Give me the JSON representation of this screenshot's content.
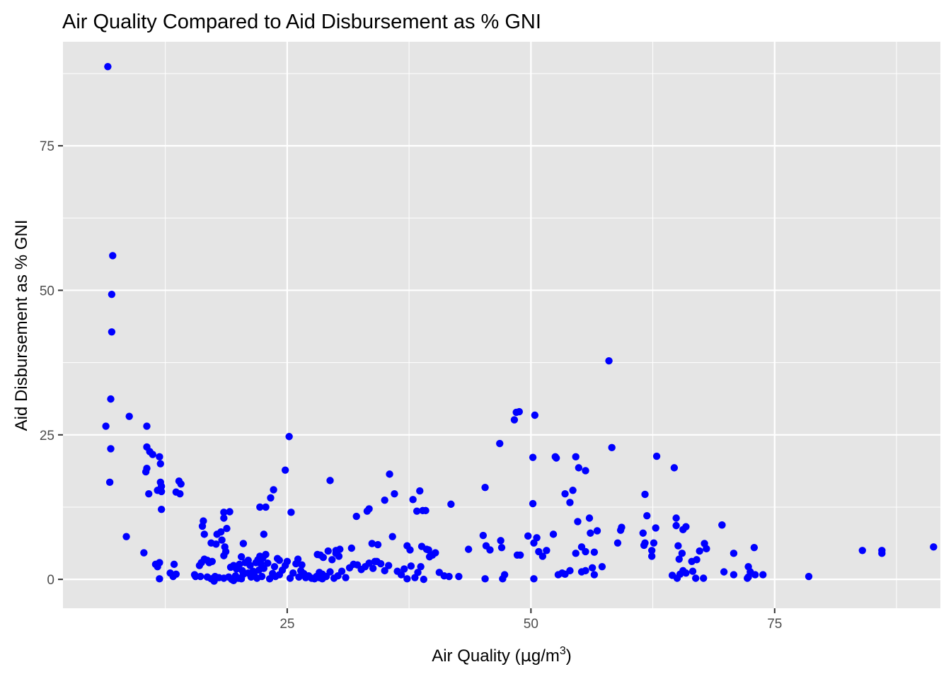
{
  "chart_data": {
    "type": "scatter",
    "title": "Air Quality Compared to Aid Disbursement as % GNI",
    "xlabel_main": "Air Quality (",
    "xlabel_unit_mu": "µ",
    "xlabel_unit_g": "g/m",
    "xlabel_unit_sup": "3",
    "xlabel_close": ")",
    "ylabel": "Aid Disbursement as % GNI",
    "xlim": [
      2,
      92
    ],
    "ylim": [
      -5,
      93
    ],
    "x_ticks": [
      25,
      50,
      75
    ],
    "y_ticks": [
      0,
      25,
      50,
      75
    ],
    "x_tick_labels": [
      "25",
      "50",
      "75"
    ],
    "y_tick_labels": [
      "0",
      "25",
      "50",
      "75"
    ],
    "x_minor": [
      12.5,
      37.5,
      62.5,
      87.5
    ],
    "y_minor": [
      12.5,
      37.5,
      62.5,
      87.5
    ],
    "grid": true,
    "colors": {
      "panel": "#e5e5e5",
      "grid": "#ffffff",
      "point": "#0000ff",
      "tick": "#333333"
    },
    "series": [
      {
        "points": [
          [
            6.6,
            88.7
          ],
          [
            7.1,
            56.0
          ],
          [
            7.0,
            49.3
          ],
          [
            7.0,
            42.8
          ],
          [
            6.9,
            31.2
          ],
          [
            6.4,
            26.5
          ],
          [
            6.9,
            22.6
          ],
          [
            6.8,
            16.8
          ],
          [
            8.8,
            28.2
          ],
          [
            8.5,
            7.4
          ],
          [
            10.6,
            26.5
          ],
          [
            10.6,
            22.9
          ],
          [
            10.9,
            22.1
          ],
          [
            11.2,
            21.6
          ],
          [
            11.9,
            21.2
          ],
          [
            12.0,
            20.0
          ],
          [
            10.6,
            19.2
          ],
          [
            10.5,
            18.6
          ],
          [
            12.0,
            16.8
          ],
          [
            12.1,
            16.1
          ],
          [
            11.7,
            15.4
          ],
          [
            12.1,
            15.2
          ],
          [
            10.8,
            14.8
          ],
          [
            12.1,
            12.1
          ],
          [
            10.3,
            4.6
          ],
          [
            11.5,
            2.6
          ],
          [
            11.7,
            2.2
          ],
          [
            11.9,
            2.9
          ],
          [
            11.9,
            0.1
          ],
          [
            13.0,
            1.1
          ],
          [
            13.3,
            0.5
          ],
          [
            13.4,
            2.6
          ],
          [
            13.6,
            0.9
          ],
          [
            13.9,
            17.0
          ],
          [
            14.1,
            16.5
          ],
          [
            14.0,
            14.8
          ],
          [
            13.6,
            15.1
          ],
          [
            15.5,
            0.8
          ],
          [
            15.6,
            0.5
          ],
          [
            16.1,
            0.5
          ],
          [
            16.8,
            0.4
          ],
          [
            17.2,
            0.1
          ],
          [
            17.5,
            -0.3
          ],
          [
            16.0,
            2.4
          ],
          [
            16.2,
            2.9
          ],
          [
            16.5,
            3.5
          ],
          [
            16.8,
            3.3
          ],
          [
            17.0,
            2.9
          ],
          [
            17.3,
            3.1
          ],
          [
            16.3,
            9.2
          ],
          [
            16.4,
            10.1
          ],
          [
            16.5,
            7.8
          ],
          [
            17.2,
            6.3
          ],
          [
            17.7,
            6.1
          ],
          [
            17.8,
            7.8
          ],
          [
            18.2,
            8.2
          ],
          [
            18.3,
            6.8
          ],
          [
            18.6,
            5.6
          ],
          [
            18.5,
            4.1
          ],
          [
            18.7,
            4.8
          ],
          [
            18.5,
            10.6
          ],
          [
            18.5,
            11.6
          ],
          [
            19.1,
            11.7
          ],
          [
            18.8,
            8.8
          ],
          [
            17.6,
            0.5
          ],
          [
            18.0,
            0.3
          ],
          [
            18.5,
            0.2
          ],
          [
            19.0,
            0.4
          ],
          [
            19.3,
            0.0
          ],
          [
            19.5,
            -0.2
          ],
          [
            19.7,
            0.6
          ],
          [
            20.0,
            0.2
          ],
          [
            20.3,
            0.1
          ],
          [
            20.5,
            0.9
          ],
          [
            19.2,
            2.1
          ],
          [
            19.5,
            2.4
          ],
          [
            19.8,
            1.8
          ],
          [
            20.1,
            2.6
          ],
          [
            20.4,
            1.5
          ],
          [
            20.7,
            2.9
          ],
          [
            21.0,
            3.3
          ],
          [
            21.2,
            2.4
          ],
          [
            21.5,
            1.4
          ],
          [
            21.8,
            2.9
          ],
          [
            20.3,
            3.9
          ],
          [
            20.5,
            6.2
          ],
          [
            21.0,
            1.1
          ],
          [
            21.3,
            0.4
          ],
          [
            21.6,
            0.8
          ],
          [
            21.9,
            0.2
          ],
          [
            22.1,
            1.6
          ],
          [
            22.3,
            2.7
          ],
          [
            22.5,
            3.7
          ],
          [
            22.8,
            4.3
          ],
          [
            22.0,
            3.4
          ],
          [
            22.2,
            4.0
          ],
          [
            22.4,
            0.5
          ],
          [
            22.6,
            1.9
          ],
          [
            23.0,
            2.8
          ],
          [
            23.2,
            0.1
          ],
          [
            23.5,
            1.0
          ],
          [
            23.7,
            2.2
          ],
          [
            24.0,
            3.6
          ],
          [
            24.2,
            3.3
          ],
          [
            22.2,
            12.5
          ],
          [
            22.8,
            12.5
          ],
          [
            22.6,
            7.8
          ],
          [
            23.3,
            14.1
          ],
          [
            23.6,
            15.5
          ],
          [
            24.8,
            18.9
          ],
          [
            25.2,
            24.7
          ],
          [
            25.4,
            11.6
          ],
          [
            23.8,
            0.5
          ],
          [
            24.2,
            0.8
          ],
          [
            24.5,
            1.6
          ],
          [
            24.8,
            2.4
          ],
          [
            25.0,
            3.1
          ],
          [
            25.3,
            0.2
          ],
          [
            25.6,
            1.1
          ],
          [
            25.9,
            2.7
          ],
          [
            26.2,
            0.4
          ],
          [
            26.4,
            1.5
          ],
          [
            26.1,
            3.5
          ],
          [
            26.5,
            2.5
          ],
          [
            26.7,
            1.0
          ],
          [
            26.9,
            0.3
          ],
          [
            27.2,
            0.6
          ],
          [
            27.5,
            0.2
          ],
          [
            27.8,
            0.1
          ],
          [
            28.0,
            0.5
          ],
          [
            28.3,
            0.3
          ],
          [
            28.6,
            0.9
          ],
          [
            28.1,
            4.3
          ],
          [
            28.4,
            4.2
          ],
          [
            28.7,
            3.8
          ],
          [
            29.2,
            4.9
          ],
          [
            29.6,
            3.4
          ],
          [
            30.0,
            4.5
          ],
          [
            30.3,
            4.0
          ],
          [
            30.0,
            5.0
          ],
          [
            30.4,
            5.2
          ],
          [
            31.6,
            5.4
          ],
          [
            28.3,
            1.2
          ],
          [
            28.6,
            0.1
          ],
          [
            29.0,
            0.5
          ],
          [
            29.4,
            1.3
          ],
          [
            29.8,
            0.2
          ],
          [
            30.2,
            0.6
          ],
          [
            30.6,
            1.4
          ],
          [
            31.0,
            0.3
          ],
          [
            31.4,
            2.0
          ],
          [
            31.8,
            2.6
          ],
          [
            29.4,
            17.1
          ],
          [
            32.2,
            2.5
          ],
          [
            32.6,
            1.7
          ],
          [
            33.0,
            2.2
          ],
          [
            33.4,
            2.8
          ],
          [
            33.8,
            1.9
          ],
          [
            34.2,
            3.1
          ],
          [
            34.6,
            2.7
          ],
          [
            35.0,
            1.5
          ],
          [
            35.4,
            2.4
          ],
          [
            32.1,
            10.9
          ],
          [
            33.2,
            11.8
          ],
          [
            33.4,
            12.2
          ],
          [
            33.7,
            6.2
          ],
          [
            34.0,
            3.1
          ],
          [
            34.3,
            6.0
          ],
          [
            35.0,
            13.7
          ],
          [
            35.5,
            18.2
          ],
          [
            36.0,
            14.8
          ],
          [
            35.8,
            7.4
          ],
          [
            36.3,
            1.4
          ],
          [
            36.7,
            0.8
          ],
          [
            37.0,
            1.8
          ],
          [
            37.3,
            0.1
          ],
          [
            37.7,
            2.3
          ],
          [
            38.1,
            0.3
          ],
          [
            38.4,
            1.2
          ],
          [
            38.7,
            2.2
          ],
          [
            39.0,
            0.0
          ],
          [
            37.3,
            5.8
          ],
          [
            37.6,
            5.1
          ],
          [
            37.9,
            13.8
          ],
          [
            38.3,
            11.8
          ],
          [
            38.6,
            15.3
          ],
          [
            38.9,
            11.9
          ],
          [
            39.2,
            11.9
          ],
          [
            39.5,
            5.1
          ],
          [
            38.8,
            5.7
          ],
          [
            39.3,
            5.2
          ],
          [
            39.6,
            3.9
          ],
          [
            39.9,
            4.2
          ],
          [
            40.2,
            4.6
          ],
          [
            40.6,
            1.2
          ],
          [
            41.1,
            0.6
          ],
          [
            41.6,
            0.5
          ],
          [
            41.8,
            13.0
          ],
          [
            42.6,
            0.5
          ],
          [
            43.6,
            5.2
          ],
          [
            45.3,
            15.9
          ],
          [
            45.1,
            7.6
          ],
          [
            45.4,
            5.8
          ],
          [
            45.8,
            5.1
          ],
          [
            45.3,
            0.1
          ],
          [
            46.8,
            23.5
          ],
          [
            46.9,
            6.7
          ],
          [
            47.0,
            5.5
          ],
          [
            47.1,
            0.1
          ],
          [
            47.3,
            0.8
          ],
          [
            48.3,
            27.6
          ],
          [
            48.5,
            28.9
          ],
          [
            48.8,
            29.0
          ],
          [
            48.6,
            4.2
          ],
          [
            48.9,
            4.2
          ],
          [
            49.7,
            7.5
          ],
          [
            50.2,
            13.1
          ],
          [
            50.3,
            6.3
          ],
          [
            50.6,
            7.2
          ],
          [
            50.2,
            21.1
          ],
          [
            50.4,
            28.4
          ],
          [
            50.3,
            0.1
          ],
          [
            50.8,
            4.8
          ],
          [
            51.2,
            4.0
          ],
          [
            51.6,
            5.0
          ],
          [
            52.3,
            7.8
          ],
          [
            52.5,
            21.2
          ],
          [
            52.6,
            21.0
          ],
          [
            52.8,
            0.8
          ],
          [
            53.2,
            1.1
          ],
          [
            53.5,
            0.9
          ],
          [
            54.0,
            1.5
          ],
          [
            53.5,
            14.8
          ],
          [
            54.0,
            13.3
          ],
          [
            54.3,
            15.4
          ],
          [
            54.6,
            21.2
          ],
          [
            54.6,
            4.5
          ],
          [
            54.9,
            19.3
          ],
          [
            54.8,
            10.0
          ],
          [
            55.2,
            5.6
          ],
          [
            55.2,
            1.3
          ],
          [
            55.6,
            18.8
          ],
          [
            55.6,
            1.5
          ],
          [
            56.0,
            10.6
          ],
          [
            56.1,
            8.0
          ],
          [
            56.5,
            4.7
          ],
          [
            56.3,
            2.0
          ],
          [
            55.6,
            4.8
          ],
          [
            56.5,
            0.8
          ],
          [
            56.8,
            8.4
          ],
          [
            57.3,
            2.2
          ],
          [
            58.0,
            37.8
          ],
          [
            58.3,
            22.8
          ],
          [
            58.9,
            6.3
          ],
          [
            59.2,
            8.5
          ],
          [
            59.3,
            9.0
          ],
          [
            61.5,
            8.0
          ],
          [
            61.7,
            6.3
          ],
          [
            61.6,
            5.9
          ],
          [
            61.7,
            14.7
          ],
          [
            61.9,
            11.0
          ],
          [
            62.4,
            4.0
          ],
          [
            62.4,
            5.0
          ],
          [
            62.6,
            6.3
          ],
          [
            62.8,
            8.9
          ],
          [
            62.9,
            21.3
          ],
          [
            64.5,
            0.7
          ],
          [
            64.7,
            19.3
          ],
          [
            65.0,
            0.2
          ],
          [
            65.3,
            0.9
          ],
          [
            64.9,
            10.6
          ],
          [
            64.9,
            9.3
          ],
          [
            65.1,
            5.8
          ],
          [
            65.2,
            3.5
          ],
          [
            65.6,
            8.6
          ],
          [
            65.9,
            9.1
          ],
          [
            65.5,
            4.5
          ],
          [
            65.6,
            1.5
          ],
          [
            65.9,
            1.1
          ],
          [
            66.5,
            3.1
          ],
          [
            66.6,
            1.4
          ],
          [
            67.0,
            3.4
          ],
          [
            66.9,
            0.2
          ],
          [
            67.3,
            4.9
          ],
          [
            67.7,
            0.2
          ],
          [
            67.8,
            6.2
          ],
          [
            68.0,
            5.3
          ],
          [
            69.6,
            9.4
          ],
          [
            69.6,
            9.4
          ],
          [
            69.8,
            1.3
          ],
          [
            70.8,
            4.5
          ],
          [
            70.8,
            0.8
          ],
          [
            72.3,
            0.4
          ],
          [
            72.3,
            2.2
          ],
          [
            72.5,
            1.3
          ],
          [
            72.2,
            0.2
          ],
          [
            72.9,
            5.5
          ],
          [
            73.0,
            0.8
          ],
          [
            73.8,
            0.8
          ],
          [
            78.5,
            0.5
          ],
          [
            84.0,
            5.0
          ],
          [
            86.0,
            5.0
          ],
          [
            86.0,
            4.5
          ],
          [
            91.3,
            5.6
          ]
        ]
      }
    ]
  }
}
